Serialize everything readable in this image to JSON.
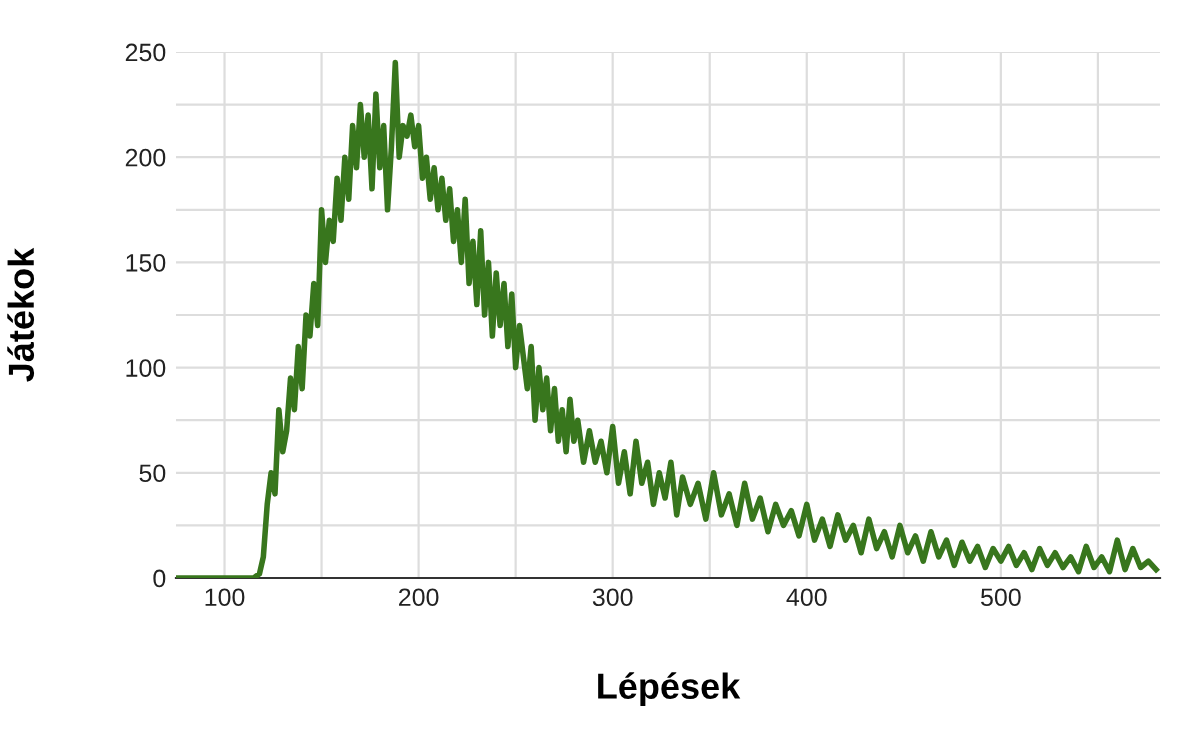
{
  "chart_data": {
    "type": "line",
    "xlabel": "Lépések",
    "ylabel": "Játékok",
    "x": [
      75,
      115,
      118,
      120,
      122,
      124,
      126,
      128,
      130,
      132,
      134,
      136,
      138,
      140,
      142,
      144,
      146,
      148,
      150,
      152,
      154,
      156,
      158,
      160,
      162,
      164,
      166,
      168,
      170,
      172,
      174,
      176,
      178,
      180,
      182,
      184,
      186,
      188,
      190,
      192,
      194,
      196,
      198,
      200,
      202,
      204,
      206,
      208,
      210,
      212,
      214,
      216,
      218,
      220,
      222,
      224,
      226,
      228,
      230,
      232,
      234,
      236,
      238,
      240,
      242,
      244,
      246,
      248,
      250,
      252,
      254,
      256,
      258,
      260,
      262,
      264,
      266,
      268,
      270,
      272,
      274,
      276,
      278,
      280,
      282,
      285,
      288,
      291,
      294,
      297,
      300,
      303,
      306,
      309,
      312,
      315,
      318,
      321,
      324,
      327,
      330,
      333,
      336,
      340,
      344,
      348,
      352,
      356,
      360,
      364,
      368,
      372,
      376,
      380,
      384,
      388,
      392,
      396,
      400,
      404,
      408,
      412,
      416,
      420,
      424,
      428,
      432,
      436,
      440,
      444,
      448,
      452,
      456,
      460,
      464,
      468,
      472,
      476,
      480,
      484,
      488,
      492,
      496,
      500,
      504,
      508,
      512,
      516,
      520,
      524,
      528,
      532,
      536,
      540,
      544,
      548,
      552,
      556,
      560,
      564,
      568,
      572,
      576,
      580
    ],
    "series": [
      {
        "color": "#38761d",
        "values": [
          0,
          0,
          2,
          10,
          35,
          50,
          40,
          80,
          60,
          70,
          95,
          80,
          110,
          90,
          125,
          115,
          140,
          120,
          175,
          150,
          170,
          160,
          190,
          170,
          200,
          180,
          215,
          195,
          225,
          200,
          220,
          185,
          230,
          195,
          215,
          175,
          205,
          245,
          200,
          215,
          210,
          220,
          205,
          215,
          190,
          200,
          180,
          195,
          175,
          190,
          170,
          185,
          160,
          175,
          150,
          180,
          140,
          160,
          130,
          165,
          125,
          150,
          115,
          145,
          120,
          140,
          110,
          135,
          100,
          120,
          105,
          90,
          110,
          75,
          100,
          80,
          95,
          70,
          90,
          65,
          80,
          60,
          85,
          65,
          75,
          55,
          70,
          55,
          65,
          50,
          72,
          45,
          60,
          40,
          65,
          45,
          55,
          35,
          50,
          38,
          55,
          30,
          48,
          35,
          45,
          28,
          50,
          30,
          40,
          25,
          45,
          28,
          38,
          22,
          35,
          25,
          32,
          20,
          35,
          18,
          28,
          15,
          30,
          18,
          25,
          12,
          28,
          14,
          22,
          10,
          25,
          12,
          20,
          8,
          22,
          10,
          18,
          6,
          17,
          8,
          15,
          5,
          14,
          8,
          15,
          6,
          12,
          4,
          14,
          6,
          12,
          5,
          10,
          3,
          15,
          5,
          10,
          3,
          18,
          4,
          14,
          5,
          8,
          4
        ]
      }
    ],
    "xlim": [
      75,
      582
    ],
    "xticks": [
      100,
      {
        "value": 150,
        "label": null
      },
      200,
      {
        "value": 250,
        "label": null
      },
      300,
      {
        "value": 350,
        "label": null
      },
      400,
      {
        "value": 450,
        "label": null
      },
      500,
      {
        "value": 550,
        "label": null
      }
    ],
    "ylim": [
      0,
      250
    ],
    "yticks": [
      0,
      {
        "value": 25,
        "label": null
      },
      50,
      {
        "value": 75,
        "label": null
      },
      100,
      {
        "value": 125,
        "label": null
      },
      150,
      {
        "value": 175,
        "label": null
      },
      200,
      {
        "value": 225,
        "label": null
      },
      250
    ],
    "grid": true,
    "line_style": "solid",
    "marker": "none"
  }
}
